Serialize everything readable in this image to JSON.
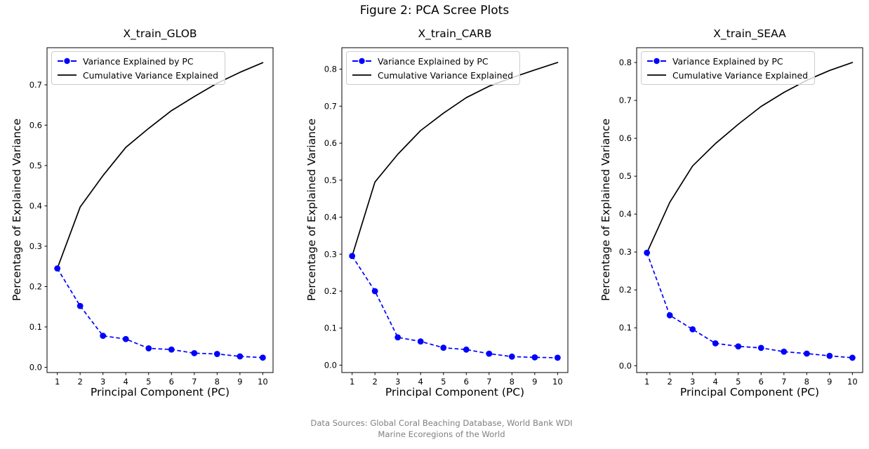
{
  "figure": {
    "suptitle": "Figure 2: PCA Scree Plots",
    "footer_line1": "Data Sources: Global Coral Beaching Database, World Bank WDI",
    "footer_line2": "Marine Ecoregions of the World"
  },
  "colors": {
    "variance_line": "#0000ff",
    "cumulative_line": "#000000",
    "footer_text": "#808080",
    "spine": "#000000",
    "legend_border": "#cccccc",
    "background": "#ffffff"
  },
  "legend": {
    "variance_label": "Variance Explained by PC",
    "cumulative_label": "Cumulative Variance Explained"
  },
  "chart_data": [
    {
      "type": "line",
      "title": "X_train_GLOB",
      "xlabel": "Principal Component (PC)",
      "ylabel": "Percentage of Explained Variance",
      "x": [
        1,
        2,
        3,
        4,
        5,
        6,
        7,
        8,
        9,
        10
      ],
      "series": [
        {
          "name": "Variance Explained by PC",
          "style": "dashed-marker",
          "color": "#0000ff",
          "values": [
            0.245,
            0.152,
            0.078,
            0.07,
            0.047,
            0.044,
            0.035,
            0.033,
            0.027,
            0.024
          ]
        },
        {
          "name": "Cumulative Variance Explained",
          "style": "solid",
          "color": "#000000",
          "values": [
            0.245,
            0.397,
            0.475,
            0.545,
            0.592,
            0.636,
            0.671,
            0.704,
            0.731,
            0.755
          ]
        }
      ],
      "xlim": [
        0.55,
        10.45
      ],
      "ylim": [
        -0.013,
        0.792
      ],
      "xticks": [
        1,
        2,
        3,
        4,
        5,
        6,
        7,
        8,
        9,
        10
      ],
      "yticks": [
        0.0,
        0.1,
        0.2,
        0.3,
        0.4,
        0.5,
        0.6,
        0.7
      ],
      "grid": false,
      "legend_position": "upper left"
    },
    {
      "type": "line",
      "title": "X_train_CARB",
      "xlabel": "Principal Component (PC)",
      "ylabel": "Percentage of Explained Variance",
      "x": [
        1,
        2,
        3,
        4,
        5,
        6,
        7,
        8,
        9,
        10
      ],
      "series": [
        {
          "name": "Variance Explained by PC",
          "style": "dashed-marker",
          "color": "#0000ff",
          "values": [
            0.295,
            0.2,
            0.075,
            0.064,
            0.047,
            0.042,
            0.031,
            0.023,
            0.021,
            0.02
          ]
        },
        {
          "name": "Cumulative Variance Explained",
          "style": "solid",
          "color": "#000000",
          "values": [
            0.295,
            0.495,
            0.57,
            0.634,
            0.681,
            0.723,
            0.754,
            0.777,
            0.798,
            0.818
          ]
        }
      ],
      "xlim": [
        0.55,
        10.45
      ],
      "ylim": [
        -0.02,
        0.858
      ],
      "xticks": [
        1,
        2,
        3,
        4,
        5,
        6,
        7,
        8,
        9,
        10
      ],
      "yticks": [
        0.0,
        0.1,
        0.2,
        0.3,
        0.4,
        0.5,
        0.6,
        0.7,
        0.8
      ],
      "grid": false,
      "legend_position": "upper left"
    },
    {
      "type": "line",
      "title": "X_train_SEAA",
      "xlabel": "Principal Component (PC)",
      "ylabel": "Percentage of Explained Variance",
      "x": [
        1,
        2,
        3,
        4,
        5,
        6,
        7,
        8,
        9,
        10
      ],
      "series": [
        {
          "name": "Variance Explained by PC",
          "style": "dashed-marker",
          "color": "#0000ff",
          "values": [
            0.298,
            0.133,
            0.096,
            0.059,
            0.051,
            0.047,
            0.037,
            0.032,
            0.026,
            0.021
          ]
        },
        {
          "name": "Cumulative Variance Explained",
          "style": "solid",
          "color": "#000000",
          "values": [
            0.298,
            0.431,
            0.527,
            0.586,
            0.637,
            0.684,
            0.721,
            0.753,
            0.779,
            0.8
          ]
        }
      ],
      "xlim": [
        0.55,
        10.45
      ],
      "ylim": [
        -0.018,
        0.839
      ],
      "xticks": [
        1,
        2,
        3,
        4,
        5,
        6,
        7,
        8,
        9,
        10
      ],
      "yticks": [
        0.0,
        0.1,
        0.2,
        0.3,
        0.4,
        0.5,
        0.6,
        0.7,
        0.8
      ],
      "grid": false,
      "legend_position": "upper left"
    }
  ]
}
